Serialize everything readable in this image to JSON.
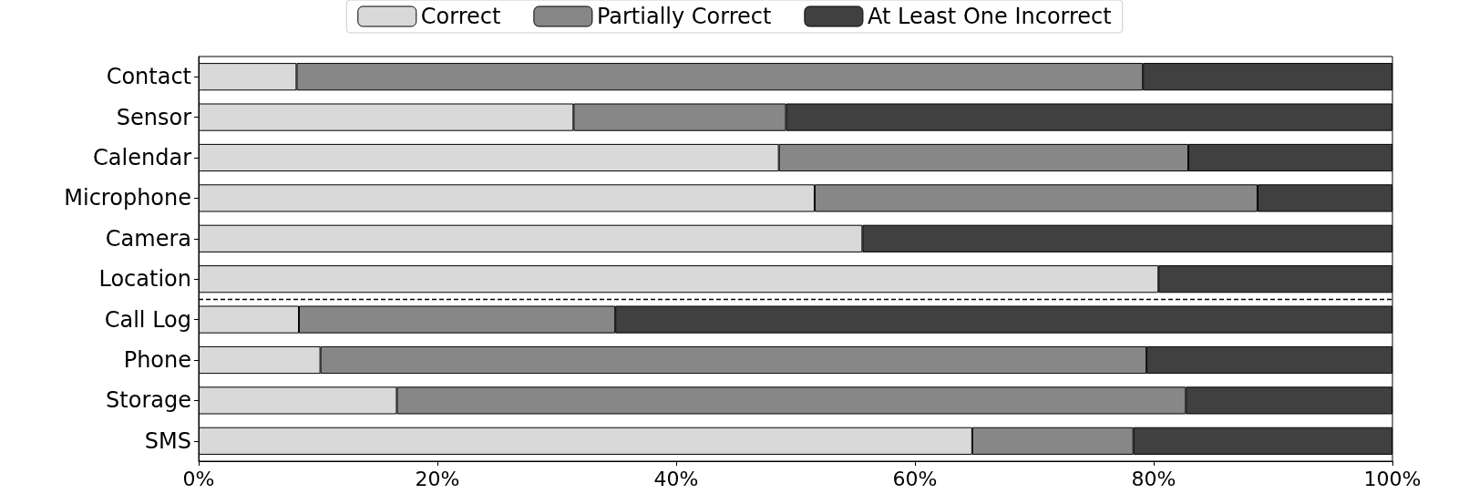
{
  "chart_data": {
    "type": "bar",
    "orientation": "horizontal",
    "stacked": true,
    "categories": [
      "Contact",
      "Sensor",
      "Calendar",
      "Microphone",
      "Camera",
      "Location",
      "Call Log",
      "Phone",
      "Storage",
      "SMS"
    ],
    "series": [
      {
        "name": "Correct",
        "color": "#d9d9d9",
        "values": [
          8.2,
          31.4,
          48.6,
          51.6,
          55.6,
          80.4,
          8.4,
          10.2,
          16.6,
          64.8
        ]
      },
      {
        "name": "Partially Correct",
        "color": "#878787",
        "values": [
          70.9,
          17.8,
          34.3,
          37.1,
          null,
          null,
          26.5,
          69.2,
          66.1,
          13.5
        ]
      },
      {
        "name": "At Least One Incorrect",
        "color": "#404040",
        "values": [
          20.9,
          50.8,
          17.1,
          11.3,
          44.4,
          19.6,
          65.1,
          20.6,
          17.3,
          21.7
        ]
      }
    ],
    "xlim": [
      0,
      100
    ],
    "xticks": [
      {
        "value": 0,
        "label": "0%"
      },
      {
        "value": 20,
        "label": "20%"
      },
      {
        "value": 40,
        "label": "40%"
      },
      {
        "value": 60,
        "label": "60%"
      },
      {
        "value": 80,
        "label": "80%"
      },
      {
        "value": 100,
        "label": "100%"
      }
    ],
    "legend": "top",
    "grid": false
  }
}
